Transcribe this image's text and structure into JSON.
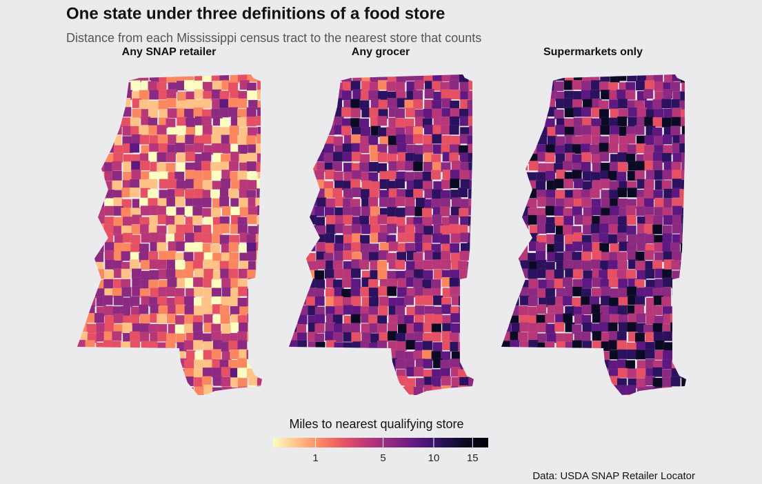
{
  "title": "One state under three definitions of a food store",
  "subtitle": "Distance from each Mississippi census tract to the nearest store that counts",
  "panels": [
    "Any SNAP retailer",
    "Any grocer",
    "Supermarkets only"
  ],
  "legend": {
    "title": "Miles to nearest qualifying store",
    "scale": "sqrt",
    "lim": [
      0.05,
      17.3
    ],
    "ticks": [
      1,
      5,
      10,
      15
    ],
    "colors": [
      "#fcfdbf",
      "#fec287",
      "#fb8761",
      "#e55064",
      "#b73779",
      "#8c2981",
      "#5f187f",
      "#2c115f",
      "#0b0924",
      "#000004"
    ]
  },
  "caption": "Data: USDA SNAP Retailer Locator"
}
